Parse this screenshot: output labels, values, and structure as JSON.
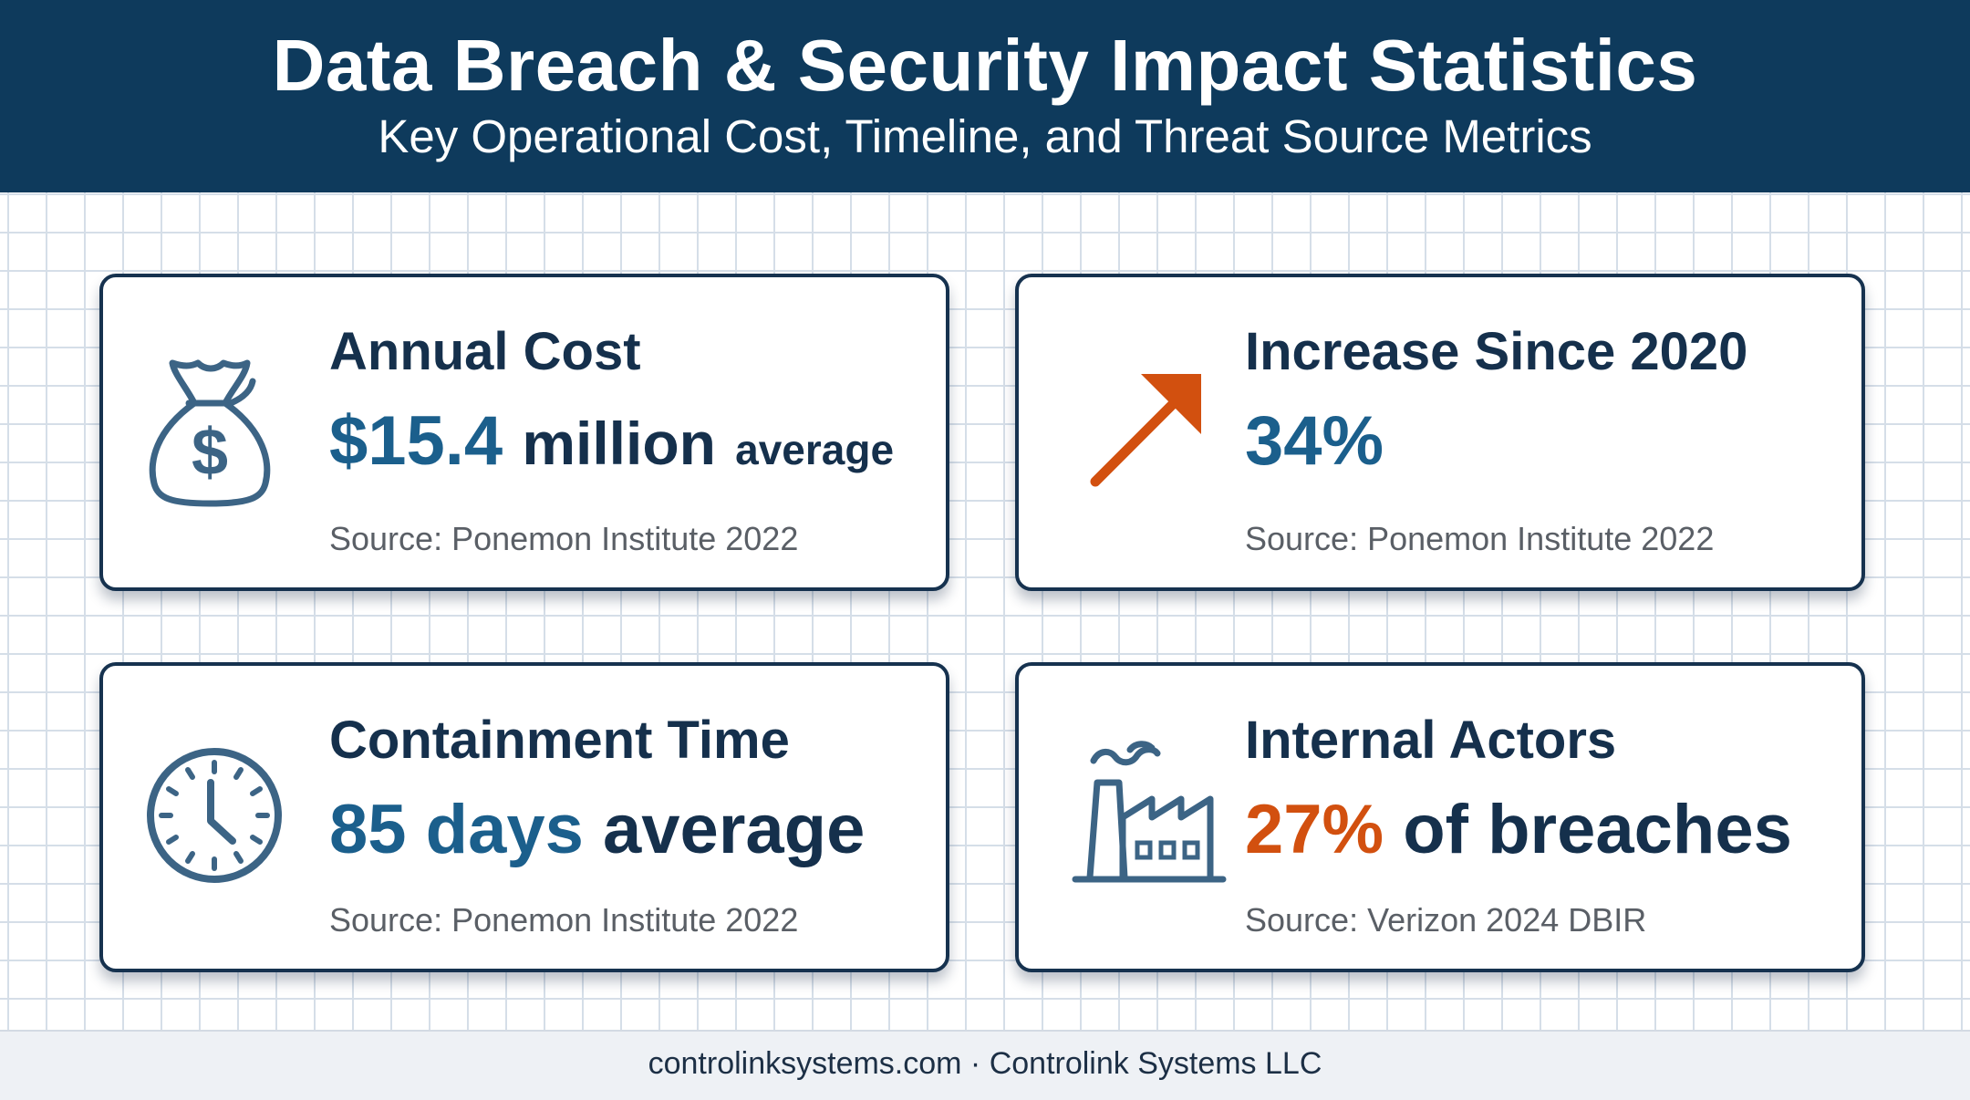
{
  "header": {
    "title": "Data Breach & Security Impact Statistics",
    "subtitle": "Key Operational Cost, Timeline, and Threat Source Metrics"
  },
  "cards": [
    {
      "icon": "money-bag-icon",
      "title": "Annual Cost",
      "value": "$15.4",
      "value_suffix": "million",
      "value_note": "average",
      "source": "Source: Ponemon Institute 2022"
    },
    {
      "icon": "trend-arrow-up-icon",
      "title": "Increase Since 2020",
      "value": "34%",
      "source": "Source: Ponemon Institute 2022"
    },
    {
      "icon": "clock-icon",
      "title": "Containment Time",
      "value": "85 days",
      "value_suffix": "average",
      "source": "Source: Ponemon Institute 2022"
    },
    {
      "icon": "factory-icon",
      "title": "Internal Actors",
      "value": "27%",
      "value_suffix": "of breaches",
      "source": "Source: Verizon 2024 DBIR"
    }
  ],
  "footer": {
    "text": "controlinksystems.com · Controlink Systems LLC"
  },
  "colors": {
    "header_bg": "#0e3a5c",
    "accent_blue": "#1b5f8c",
    "accent_orange": "#d2500f",
    "text_dark": "#15304c"
  }
}
